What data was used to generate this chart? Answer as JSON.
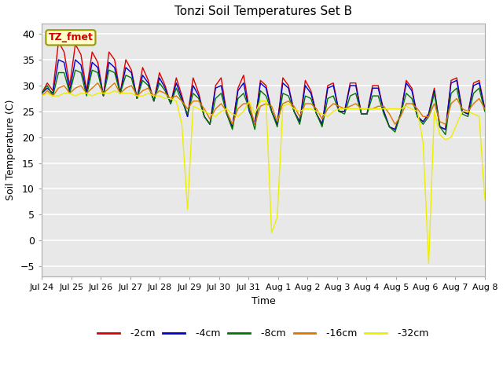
{
  "title": "Tonzi Soil Temperatures Set B",
  "xlabel": "Time",
  "ylabel": "Soil Temperature (C)",
  "ylim": [
    -7,
    42
  ],
  "yticks": [
    -5,
    0,
    5,
    10,
    15,
    20,
    25,
    30,
    35,
    40
  ],
  "colors": {
    "-2cm": "#dd0000",
    "-4cm": "#0000cc",
    "-8cm": "#007700",
    "-16cm": "#dd7700",
    "-32cm": "#eeee00"
  },
  "legend_label": "TZ_fmet",
  "legend_box_facecolor": "#ffffcc",
  "legend_box_edgecolor": "#999900",
  "fig_facecolor": "#ffffff",
  "plot_facecolor": "#e8e8e8",
  "grid_color": "#ffffff",
  "linewidth": 1.0,
  "tick_labels": [
    "Jul 24",
    "Jul 25",
    "Jul 26",
    "Jul 27",
    "Jul 28",
    "Jul 29",
    "Jul 30",
    "Jul 31",
    "Aug 1",
    "Aug 2",
    "Aug 3",
    "Aug 4",
    "Aug 5",
    "Aug 6",
    "Aug 7",
    "Aug 8"
  ],
  "series": {
    "-2cm": [
      28.5,
      30.5,
      29.0,
      38.5,
      36.5,
      30.0,
      38.0,
      36.0,
      29.0,
      36.5,
      34.5,
      28.0,
      36.5,
      35.0,
      28.5,
      35.0,
      33.0,
      27.5,
      33.5,
      31.0,
      27.0,
      32.5,
      30.0,
      26.5,
      31.5,
      28.0,
      24.0,
      31.5,
      28.5,
      24.0,
      22.5,
      30.0,
      31.5,
      24.5,
      22.0,
      29.5,
      32.0,
      25.5,
      22.5,
      31.0,
      30.0,
      25.0,
      22.5,
      31.5,
      30.0,
      25.0,
      23.0,
      31.0,
      29.0,
      24.5,
      22.5,
      30.0,
      30.5,
      25.0,
      25.0,
      30.5,
      30.5,
      24.5,
      24.5,
      30.0,
      30.0,
      25.0,
      22.0,
      21.5,
      24.5,
      31.0,
      29.5,
      24.0,
      23.0,
      24.5,
      29.5,
      22.0,
      21.5,
      31.0,
      31.5,
      25.0,
      24.5,
      30.5,
      31.0,
      25.5
    ],
    "-4cm": [
      28.5,
      29.5,
      28.5,
      35.0,
      34.5,
      29.0,
      35.0,
      34.0,
      28.5,
      34.5,
      33.5,
      28.0,
      34.5,
      33.5,
      28.5,
      33.5,
      32.5,
      27.5,
      32.0,
      30.5,
      27.0,
      31.5,
      29.5,
      26.5,
      30.5,
      27.5,
      24.0,
      30.0,
      28.0,
      24.0,
      22.5,
      29.5,
      30.0,
      24.5,
      22.0,
      29.0,
      30.5,
      25.0,
      22.5,
      30.5,
      29.5,
      25.0,
      22.5,
      30.5,
      29.5,
      25.0,
      23.0,
      30.0,
      28.5,
      24.5,
      22.5,
      29.5,
      30.0,
      25.0,
      25.0,
      30.0,
      30.0,
      24.5,
      24.5,
      29.5,
      29.5,
      25.0,
      22.0,
      21.5,
      24.5,
      30.5,
      29.0,
      24.0,
      23.0,
      24.5,
      29.0,
      22.0,
      21.5,
      30.5,
      31.0,
      25.0,
      24.5,
      30.0,
      30.5,
      25.5
    ],
    "-8cm": [
      28.5,
      30.0,
      28.0,
      32.5,
      32.5,
      28.5,
      33.0,
      32.5,
      28.0,
      33.0,
      32.5,
      28.0,
      33.0,
      32.5,
      28.5,
      32.0,
      31.5,
      27.5,
      31.0,
      30.0,
      27.0,
      30.5,
      29.0,
      26.5,
      29.5,
      27.0,
      24.5,
      28.5,
      27.5,
      24.0,
      22.5,
      27.5,
      28.5,
      24.5,
      21.5,
      27.5,
      28.5,
      25.5,
      21.5,
      29.0,
      28.0,
      25.0,
      22.0,
      28.5,
      28.0,
      25.0,
      22.5,
      28.0,
      27.5,
      24.5,
      22.0,
      27.5,
      28.0,
      25.0,
      24.5,
      28.0,
      28.5,
      24.5,
      24.5,
      28.0,
      28.0,
      24.5,
      22.0,
      21.0,
      24.5,
      28.5,
      27.5,
      24.0,
      22.5,
      24.0,
      28.5,
      22.0,
      20.5,
      28.5,
      29.5,
      24.5,
      24.0,
      28.5,
      29.5,
      25.0
    ],
    "-16cm": [
      28.0,
      29.0,
      28.0,
      29.5,
      30.0,
      28.5,
      29.5,
      30.0,
      28.5,
      29.5,
      30.5,
      28.5,
      29.5,
      30.5,
      28.5,
      29.5,
      30.0,
      28.0,
      29.0,
      29.5,
      28.0,
      29.0,
      28.5,
      27.5,
      28.0,
      27.0,
      25.5,
      27.0,
      27.0,
      25.5,
      23.5,
      25.5,
      26.5,
      25.0,
      22.5,
      25.5,
      26.5,
      26.5,
      22.5,
      26.0,
      26.5,
      26.0,
      23.0,
      26.5,
      27.0,
      26.0,
      24.0,
      26.5,
      26.5,
      25.5,
      23.5,
      25.5,
      26.5,
      26.0,
      25.5,
      26.0,
      26.5,
      25.5,
      25.5,
      25.5,
      26.0,
      26.0,
      24.5,
      22.5,
      24.0,
      26.5,
      26.5,
      25.5,
      24.0,
      24.0,
      26.5,
      23.0,
      22.5,
      26.5,
      27.5,
      25.5,
      25.0,
      26.5,
      27.5,
      25.5
    ],
    "-32cm": [
      28.0,
      28.5,
      28.0,
      28.0,
      28.5,
      28.5,
      28.0,
      28.5,
      28.5,
      28.0,
      28.5,
      28.5,
      28.5,
      29.0,
      28.5,
      28.5,
      28.5,
      28.0,
      28.0,
      28.5,
      28.0,
      28.0,
      27.5,
      27.5,
      27.0,
      22.5,
      6.0,
      26.0,
      25.5,
      25.0,
      24.5,
      24.0,
      25.0,
      25.5,
      24.5,
      24.0,
      25.0,
      27.0,
      24.5,
      27.0,
      27.0,
      1.5,
      4.5,
      26.0,
      26.5,
      25.5,
      25.0,
      25.5,
      25.5,
      25.0,
      24.5,
      24.0,
      25.0,
      25.5,
      25.5,
      25.5,
      25.5,
      25.5,
      25.5,
      25.5,
      25.5,
      25.5,
      25.5,
      25.5,
      25.5,
      26.0,
      25.5,
      25.0,
      19.0,
      -4.5,
      25.0,
      20.5,
      19.5,
      20.0,
      22.5,
      25.0,
      25.0,
      24.5,
      24.0,
      8.0
    ]
  }
}
